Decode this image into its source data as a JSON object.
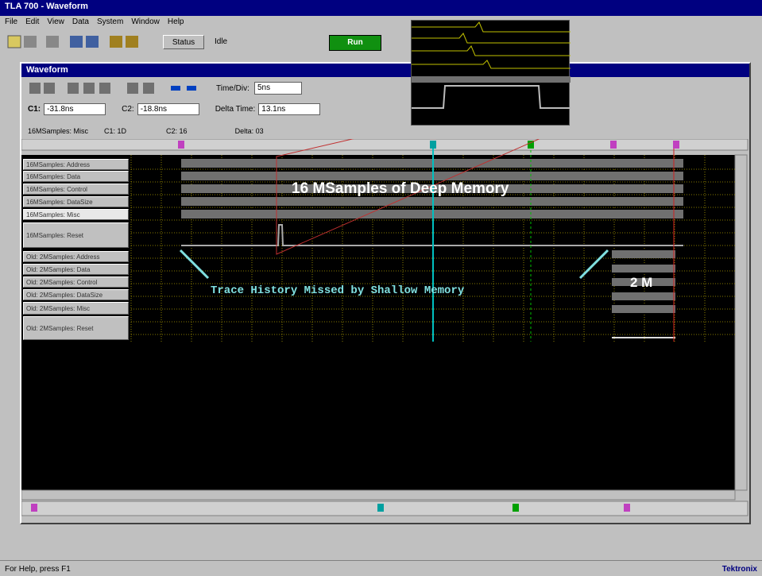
{
  "app": {
    "title": "TLA 700 - Waveform",
    "menu": [
      "File",
      "Edit",
      "View",
      "Data",
      "System",
      "Window",
      "Help"
    ],
    "toolbar": {
      "status_button": "Status",
      "status_text": "Idle",
      "run_button": "Run"
    }
  },
  "waveform_window": {
    "title": "Waveform",
    "time_div_label": "Time/Div:",
    "time_div_value": "5ns",
    "cursor_fields": [
      {
        "label": "C1:",
        "value": "-31.8ns"
      },
      {
        "label": "C2:",
        "value": "-18.8ns"
      },
      {
        "label": "Delta Time:",
        "value": "13.1ns"
      }
    ],
    "readout": [
      "16MSamples: Misc",
      "C1: 1D",
      "C2: 16",
      "Delta: 03"
    ],
    "channels": [
      "16MSamples: Address",
      "16MSamples: Data",
      "16MSamples: Control",
      "16MSamples: DataSize",
      "16MSamples: Misc",
      "16MSamples: Reset",
      "Old: 2MSamples: Address",
      "Old: 2MSamples: Data",
      "Old: 2MSamples: Control",
      "Old: 2MSamples: DataSize",
      "Old: 2MSamples: Misc",
      "Old: 2MSamples: Reset"
    ]
  },
  "annotations": {
    "deep": "16 MSamples of Deep Memory",
    "missed": "Trace History Missed by Shallow Memory",
    "shallow": "2 M"
  },
  "status_bar": {
    "help": "For Help, press F1",
    "brand": "Tektronix"
  }
}
